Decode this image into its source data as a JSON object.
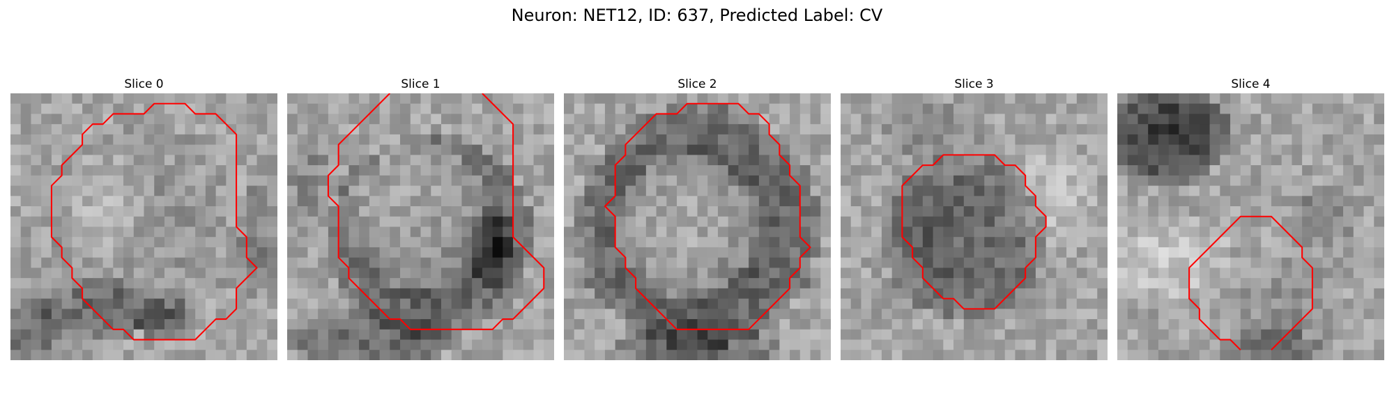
{
  "figure": {
    "title": "Neuron: NET12, ID: 637, Predicted Label: CV"
  },
  "colors": {
    "contour": "#ff0000"
  },
  "panels": [
    {
      "title": "Slice 0",
      "seed": 11,
      "contour": [
        [
          14,
          1
        ],
        [
          17,
          1
        ],
        [
          18,
          2
        ],
        [
          20,
          2
        ],
        [
          21,
          3
        ],
        [
          22,
          4
        ],
        [
          22,
          13
        ],
        [
          23,
          14
        ],
        [
          23,
          16
        ],
        [
          24,
          17
        ],
        [
          23,
          18
        ],
        [
          22,
          19
        ],
        [
          22,
          21
        ],
        [
          21,
          22
        ],
        [
          20,
          22
        ],
        [
          19,
          23
        ],
        [
          18,
          24
        ],
        [
          12,
          24
        ],
        [
          11,
          23
        ],
        [
          10,
          23
        ],
        [
          9,
          22
        ],
        [
          8,
          21
        ],
        [
          7,
          20
        ],
        [
          7,
          19
        ],
        [
          6,
          18
        ],
        [
          6,
          17
        ],
        [
          5,
          16
        ],
        [
          5,
          15
        ],
        [
          4,
          14
        ],
        [
          4,
          9
        ],
        [
          5,
          8
        ],
        [
          5,
          7
        ],
        [
          6,
          6
        ],
        [
          7,
          5
        ],
        [
          7,
          4
        ],
        [
          8,
          3
        ],
        [
          9,
          3
        ],
        [
          10,
          2
        ],
        [
          13,
          2
        ]
      ],
      "closed": true
    },
    {
      "title": "Slice 1",
      "seed": 23,
      "contour": [
        [
          10,
          0
        ],
        [
          9,
          1
        ],
        [
          8,
          2
        ],
        [
          7,
          3
        ],
        [
          6,
          4
        ],
        [
          5,
          5
        ],
        [
          5,
          7
        ],
        [
          4,
          8
        ],
        [
          4,
          10
        ],
        [
          5,
          11
        ],
        [
          5,
          16
        ],
        [
          6,
          17
        ],
        [
          6,
          18
        ],
        [
          7,
          19
        ],
        [
          8,
          20
        ],
        [
          9,
          21
        ],
        [
          10,
          22
        ],
        [
          11,
          22
        ],
        [
          12,
          23
        ],
        [
          20,
          23
        ],
        [
          21,
          22
        ],
        [
          22,
          22
        ],
        [
          23,
          21
        ],
        [
          24,
          20
        ],
        [
          25,
          19
        ],
        [
          25,
          17
        ],
        [
          24,
          16
        ],
        [
          23,
          15
        ],
        [
          22,
          14
        ],
        [
          22,
          3
        ],
        [
          21,
          2
        ],
        [
          20,
          1
        ],
        [
          19,
          0
        ]
      ],
      "closed": false
    },
    {
      "title": "Slice 2",
      "seed": 37,
      "contour": [
        [
          13,
          1
        ],
        [
          17,
          1
        ],
        [
          18,
          2
        ],
        [
          19,
          2
        ],
        [
          20,
          3
        ],
        [
          20,
          4
        ],
        [
          21,
          5
        ],
        [
          21,
          6
        ],
        [
          22,
          7
        ],
        [
          22,
          8
        ],
        [
          23,
          9
        ],
        [
          23,
          14
        ],
        [
          24,
          15
        ],
        [
          23,
          16
        ],
        [
          23,
          17
        ],
        [
          22,
          18
        ],
        [
          22,
          19
        ],
        [
          21,
          20
        ],
        [
          20,
          21
        ],
        [
          19,
          22
        ],
        [
          18,
          23
        ],
        [
          11,
          23
        ],
        [
          10,
          22
        ],
        [
          9,
          21
        ],
        [
          8,
          20
        ],
        [
          7,
          19
        ],
        [
          7,
          18
        ],
        [
          6,
          17
        ],
        [
          6,
          16
        ],
        [
          5,
          15
        ],
        [
          5,
          12
        ],
        [
          4,
          11
        ],
        [
          5,
          10
        ],
        [
          5,
          7
        ],
        [
          6,
          6
        ],
        [
          6,
          5
        ],
        [
          7,
          4
        ],
        [
          8,
          3
        ],
        [
          9,
          2
        ],
        [
          11,
          2
        ],
        [
          12,
          1
        ]
      ],
      "closed": true
    },
    {
      "title": "Slice 3",
      "seed": 53,
      "contour": [
        [
          12,
          6
        ],
        [
          15,
          6
        ],
        [
          16,
          7
        ],
        [
          17,
          7
        ],
        [
          18,
          8
        ],
        [
          18,
          9
        ],
        [
          19,
          10
        ],
        [
          19,
          11
        ],
        [
          20,
          12
        ],
        [
          20,
          13
        ],
        [
          19,
          14
        ],
        [
          19,
          16
        ],
        [
          18,
          17
        ],
        [
          18,
          18
        ],
        [
          17,
          19
        ],
        [
          16,
          20
        ],
        [
          15,
          21
        ],
        [
          12,
          21
        ],
        [
          11,
          20
        ],
        [
          10,
          20
        ],
        [
          9,
          19
        ],
        [
          8,
          18
        ],
        [
          8,
          17
        ],
        [
          7,
          16
        ],
        [
          7,
          15
        ],
        [
          6,
          14
        ],
        [
          6,
          9
        ],
        [
          7,
          8
        ],
        [
          8,
          7
        ],
        [
          9,
          7
        ],
        [
          10,
          6
        ]
      ],
      "closed": true
    },
    {
      "title": "Slice 4",
      "seed": 71,
      "contour": [
        [
          12,
          25
        ],
        [
          11,
          24
        ],
        [
          10,
          24
        ],
        [
          9,
          23
        ],
        [
          8,
          22
        ],
        [
          8,
          21
        ],
        [
          7,
          20
        ],
        [
          7,
          17
        ],
        [
          8,
          16
        ],
        [
          9,
          15
        ],
        [
          10,
          14
        ],
        [
          11,
          13
        ],
        [
          12,
          12
        ],
        [
          15,
          12
        ],
        [
          16,
          13
        ],
        [
          17,
          14
        ],
        [
          18,
          15
        ],
        [
          18,
          16
        ],
        [
          19,
          17
        ],
        [
          19,
          21
        ],
        [
          18,
          22
        ],
        [
          17,
          23
        ],
        [
          16,
          24
        ],
        [
          15,
          25
        ]
      ],
      "closed": false
    }
  ]
}
